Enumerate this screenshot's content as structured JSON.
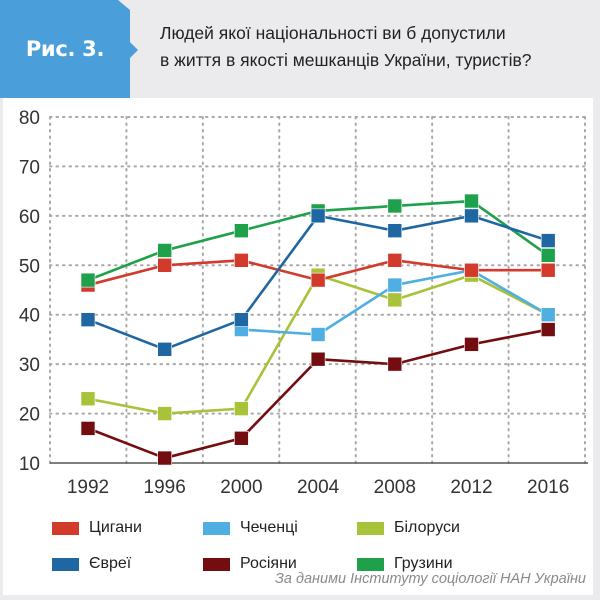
{
  "header": {
    "badge_label": "Рис. 3.",
    "badge_color": "#4a9fdb",
    "title_line1": "Людей якої національності ви б допустили",
    "title_line2": "в життя в якості мешканців України, туристів?"
  },
  "footer": {
    "source": "За даними Інституту соціології НАН України"
  },
  "legend": [
    {
      "name": "Цигани",
      "color": "#d23a2c"
    },
    {
      "name": "Чеченці",
      "color": "#4fafe3"
    },
    {
      "name": "Білоруси",
      "color": "#a8c23a"
    },
    {
      "name": "Євреї",
      "color": "#1f67a2"
    },
    {
      "name": "Росіяни",
      "color": "#740d10"
    },
    {
      "name": "Грузини",
      "color": "#1fa04a"
    }
  ],
  "chart_data": {
    "type": "line",
    "title": "Людей якої національності ви б допустили в життя в якості мешканців України, туристів?",
    "xlabel": "",
    "ylabel": "",
    "x": [
      "1992",
      "1996",
      "2000",
      "2004",
      "2008",
      "2012",
      "2016"
    ],
    "yticks": [
      "10",
      "20",
      "30",
      "40",
      "50",
      "60",
      "70",
      "80"
    ],
    "ylim": [
      10,
      80
    ],
    "grid": true,
    "legend_position": "bottom",
    "series": [
      {
        "name": "Цигани",
        "color": "#d23a2c",
        "values": [
          46,
          50,
          51,
          47,
          51,
          49,
          49
        ]
      },
      {
        "name": "Чеченці",
        "color": "#4fafe3",
        "values": [
          null,
          null,
          37,
          36,
          46,
          49,
          40
        ]
      },
      {
        "name": "Білоруси",
        "color": "#a8c23a",
        "values": [
          23,
          20,
          21,
          48,
          43,
          48,
          40
        ]
      },
      {
        "name": "Євреї",
        "color": "#1f67a2",
        "values": [
          39,
          33,
          39,
          60,
          57,
          60,
          55
        ]
      },
      {
        "name": "Росіяни",
        "color": "#740d10",
        "values": [
          17,
          11,
          15,
          31,
          30,
          34,
          37
        ]
      },
      {
        "name": "Грузини",
        "color": "#1fa04a",
        "values": [
          47,
          53,
          57,
          61,
          62,
          63,
          52
        ]
      }
    ],
    "draw_order": [
      "Білоруси",
      "Чеченці",
      "Росіяни",
      "Цигани",
      "Грузини",
      "Євреї"
    ]
  }
}
